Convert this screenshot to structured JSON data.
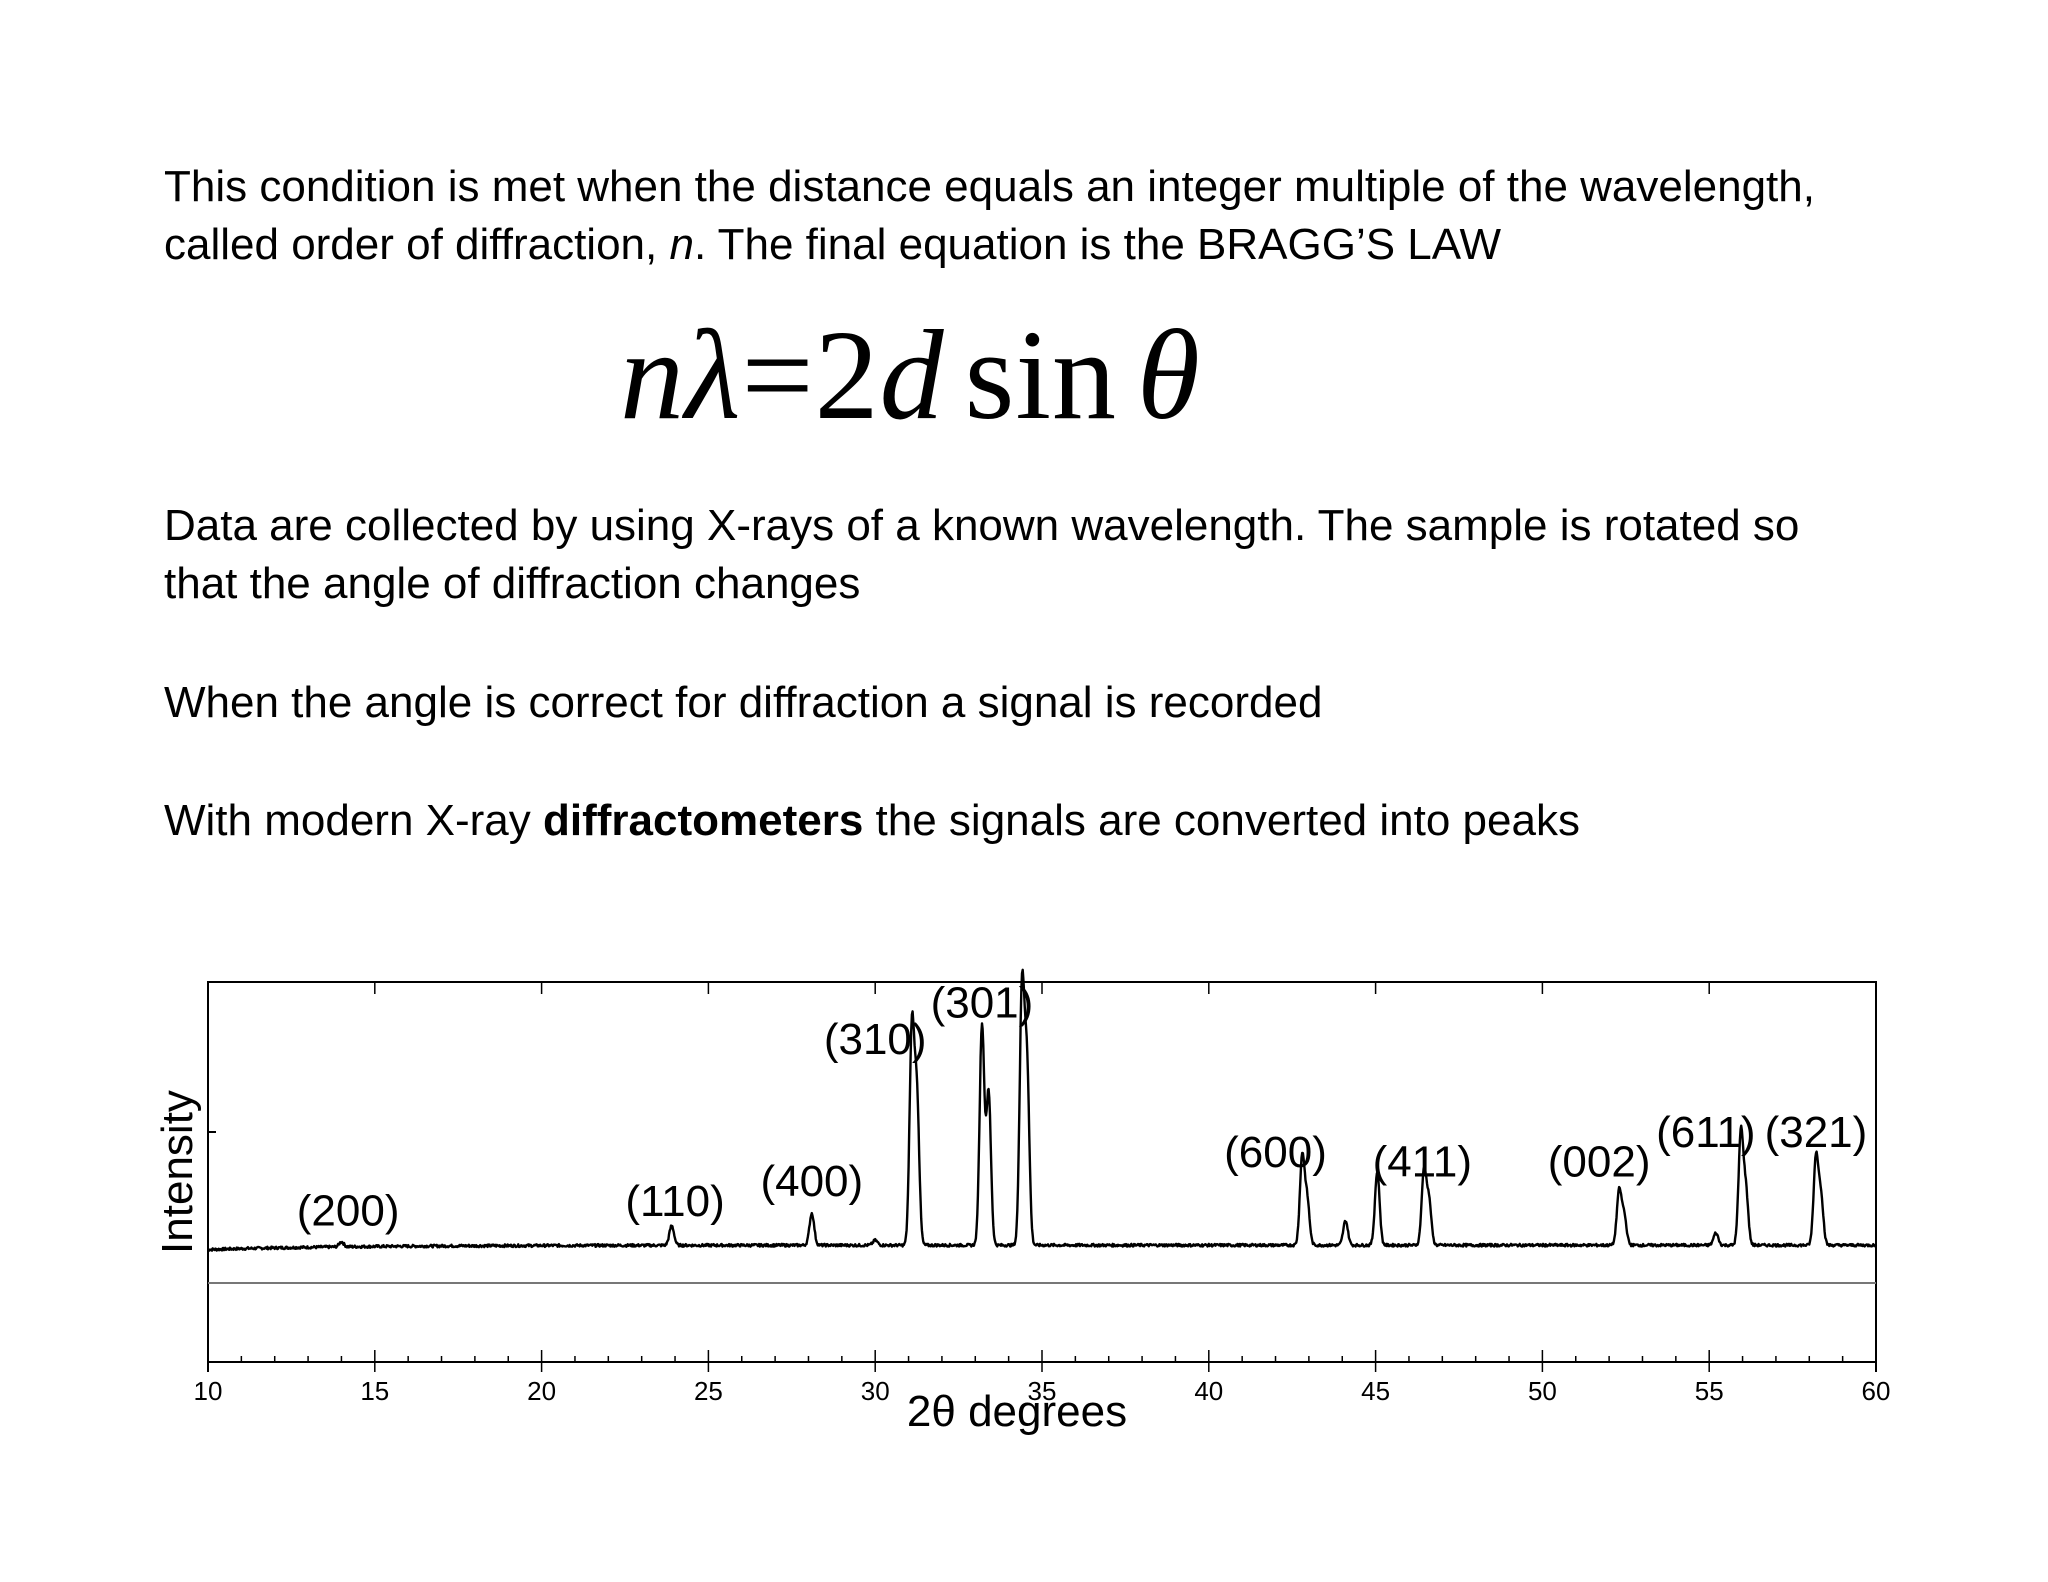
{
  "paragraphs": {
    "p1": {
      "line1": "This condition is met when the distance equals an integer multiple of the wavelength,",
      "line2_a": "called order of diffraction, ",
      "line2_n": "n",
      "line2_b": ". The final equation is the BRAGG’S LAW"
    },
    "p2": {
      "line1": "Data are collected by using X-rays of a known wavelength. The sample is rotated so",
      "line2": "that the angle of diffraction changes"
    },
    "p3": "When the angle is correct for diffraction a signal is recorded",
    "p4": {
      "a": "With modern X-ray ",
      "bold": "diffractometers",
      "b": " the signals are converted into peaks"
    }
  },
  "equation": {
    "n": "n",
    "lambda": "λ",
    "equals": "=",
    "two": "2",
    "d": "d",
    "sin": "sin",
    "theta": "θ"
  },
  "chart_data": {
    "type": "line",
    "xlabel": "2θ degrees",
    "ylabel": "Intensity",
    "xlim": [
      10,
      60
    ],
    "ylim": [
      0,
      100
    ],
    "xticks": [
      10,
      15,
      20,
      25,
      30,
      35,
      40,
      45,
      50,
      55,
      60
    ],
    "grid": false,
    "series": [
      {
        "baseline": 4,
        "peaks": [
          {
            "x": 14.0,
            "y": 2
          },
          {
            "x": 23.9,
            "y": 8
          },
          {
            "x": 28.1,
            "y": 13
          },
          {
            "x": 30.0,
            "y": 2
          },
          {
            "x": 31.1,
            "y": 88
          },
          {
            "x": 31.25,
            "y": 60
          },
          {
            "x": 33.2,
            "y": 90
          },
          {
            "x": 33.4,
            "y": 62
          },
          {
            "x": 34.4,
            "y": 104
          },
          {
            "x": 34.55,
            "y": 72
          },
          {
            "x": 42.8,
            "y": 36
          },
          {
            "x": 42.95,
            "y": 18
          },
          {
            "x": 44.1,
            "y": 10
          },
          {
            "x": 45.05,
            "y": 30
          },
          {
            "x": 46.45,
            "y": 30
          },
          {
            "x": 46.6,
            "y": 18
          },
          {
            "x": 52.3,
            "y": 22
          },
          {
            "x": 52.45,
            "y": 12
          },
          {
            "x": 55.2,
            "y": 5
          },
          {
            "x": 55.95,
            "y": 46
          },
          {
            "x": 56.1,
            "y": 22
          },
          {
            "x": 58.2,
            "y": 36
          },
          {
            "x": 58.35,
            "y": 20
          }
        ]
      }
    ],
    "annotations": [
      {
        "text": "(200)",
        "x": 14.2,
        "y": 12
      },
      {
        "text": "(110)",
        "x": 24.0,
        "y": 16
      },
      {
        "text": "(400)",
        "x": 28.1,
        "y": 24
      },
      {
        "text": "(310)",
        "x": 30.0,
        "y": 82
      },
      {
        "text": "(301)",
        "x": 33.2,
        "y": 97
      },
      {
        "text": "(600)",
        "x": 42.0,
        "y": 36
      },
      {
        "text": "(411)",
        "x": 46.4,
        "y": 32
      },
      {
        "text": "(002)",
        "x": 51.7,
        "y": 32
      },
      {
        "text": "(611)",
        "x": 54.9,
        "y": 44
      },
      {
        "text": "(321)",
        "x": 58.2,
        "y": 44
      }
    ]
  }
}
